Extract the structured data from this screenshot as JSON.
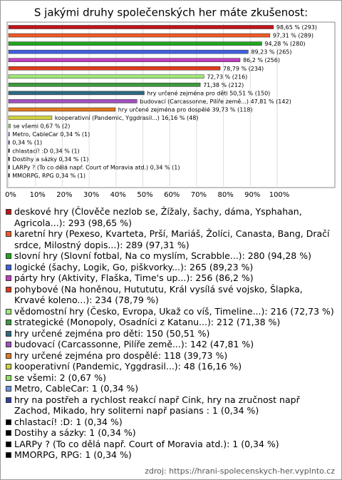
{
  "chart_data": {
    "type": "bar",
    "orientation": "horizontal",
    "title": "S jakými druhy společenských her máte zkušenost:",
    "categories": [
      "deskové hry (Člověče nezlob se, Žížaly, šachy, dáma, Ysphahan, Agricola...): 293 (98,65 %)",
      "karetní hry (Pexeso, Kvarteta, Prší, Mariáš, Žolíci, Canasta, Bang, Dračí srdce, Milostný dopis...): 289 (97,31 %)",
      "slovní hry (Slovní fotbal, Na co myslím, Scrabble...): 280 (94,28 %)",
      "logické (šachy, Logik, Go, piškvorky...): 265 (89,23 %)",
      "párty hry (Aktivity, Flaška, Time's up...): 256 (86,2 %)",
      "pohybové (Na honěnou, Hutututu, Král vysílá své vojsko, Šlapka, Krvavé koleno...): 234 (78,79 %)",
      "vědomostní hry (Česko, Evropa, Ukaž co víš, Timeline...): 216 (72,73 %)",
      "strategické (Monopoly, Osadníci z Katanu...): 212 (71,38 %)",
      "hry určené zejména pro děti: 150 (50,51 %)",
      "budovací (Carcassonne, Pilíře země...): 142 (47,81 %)",
      "hry určené zejména pro dospělé: 118 (39,73 %)",
      "kooperativní (Pandemic, Yggdrasil...): 48 (16,16 %)",
      "se všemi: 2 (0,67 %)",
      "Metro, CableCar: 1 (0,34 %)",
      "hry na postřeh a rychlost reakcí např Cink, hry na zručnost např Zachod, Mikado, hry soliterni např pasians : 1 (0,34 %)",
      "chlastací! :D: 1 (0,34 %)",
      "Dostihy a sázky: 1 (0,34 %)",
      "LARPy ? (To co dělá např. Court of Moravia atd.): 1 (0,34 %)",
      "MMORPG, RPG: 1 (0,34 %)"
    ],
    "values": [
      98.65,
      97.31,
      94.28,
      89.23,
      86.2,
      78.79,
      72.73,
      71.38,
      50.51,
      47.81,
      39.73,
      16.16,
      0.67,
      0.34,
      0.34,
      0.34,
      0.34,
      0.34,
      0.34
    ],
    "value_labels": [
      "98,65 % (293)",
      "97,31 % (289)",
      "94,28 % (280)",
      "89,23 % (265)",
      "86,2 % (256)",
      "78,79 % (234)",
      "72,73 % (216)",
      "71,38 % (212)",
      "hry určené zejména pro děti 50,51 % (150)",
      "budovací (Carcassonne, Pilíře země...) 47,81 % (142)",
      "hry určené zejména pro dospělé 39,73 % (118)",
      "kooperativní (Pandemic, Yggdrasil...) 16,16 % (48)",
      "se všemi 0,67 % (2)",
      "Metro, CableCar 0,34 % (1)",
      "0,34 % (1)",
      "chlastací! :D 0,34 % (1)",
      "Dostihy a sázky 0,34 % (1)",
      "LARPy ? (To co dělá např. Court of Moravia atd.) 0,34 % (1)",
      "MMORPG, RPG 0,34 % (1)"
    ],
    "colors": [
      "#c0141a",
      "#f05a28",
      "#1fa61f",
      "#4060e0",
      "#c040c0",
      "#e03a1a",
      "#a0e878",
      "#3c9a3c",
      "#2e6a80",
      "#a050c0",
      "#e07820",
      "#d0d040",
      "#90e060",
      "#7090e0",
      "#3040a0",
      "#000000",
      "#000000",
      "#000000",
      "#000000"
    ],
    "xlim": [
      0,
      100
    ],
    "xticks": [
      {
        "value": 0,
        "label": "0%"
      },
      {
        "value": 10,
        "label": "10%"
      },
      {
        "value": 20,
        "label": "20%"
      },
      {
        "value": 30,
        "label": "30%"
      },
      {
        "value": 40,
        "label": "40%"
      },
      {
        "value": 50,
        "label": "50%"
      },
      {
        "value": 60,
        "label": "60%"
      },
      {
        "value": 70,
        "label": "70%"
      },
      {
        "value": 80,
        "label": "80%"
      },
      {
        "value": 90,
        "label": "90%"
      },
      {
        "value": 100,
        "label": "100%"
      }
    ],
    "grid": true,
    "source": "zdroj: https://hrani-spolecenskych-her.vyplnto.cz"
  }
}
